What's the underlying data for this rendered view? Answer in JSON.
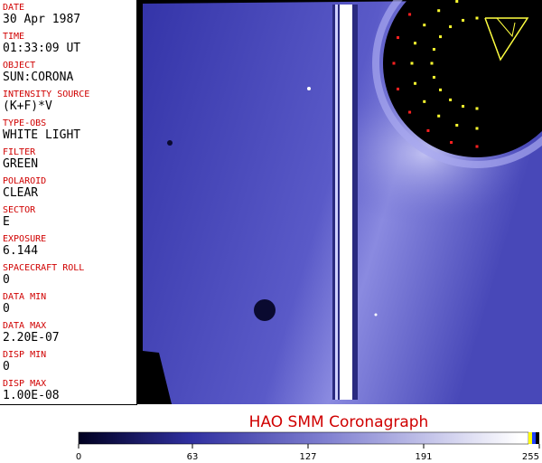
{
  "fields": [
    {
      "label": "DATE",
      "value": "30 Apr 1987"
    },
    {
      "label": "TIME",
      "value": "01:33:09 UT"
    },
    {
      "label": "OBJECT",
      "value": "SUN:CORONA"
    },
    {
      "label": "INTENSITY SOURCE",
      "value": "(K+F)*V"
    },
    {
      "label": "TYPE-OBS",
      "value": "WHITE LIGHT"
    },
    {
      "label": "FILTER",
      "value": "GREEN"
    },
    {
      "label": "POLAROID",
      "value": "CLEAR"
    },
    {
      "label": "SECTOR",
      "value": "E"
    },
    {
      "label": "EXPOSURE",
      "value": "6.144"
    },
    {
      "label": "SPACECRAFT ROLL",
      "value": "0"
    },
    {
      "label": "DATA MIN",
      "value": "0"
    },
    {
      "label": "DATA MAX",
      "value": "2.20E-07"
    },
    {
      "label": "DISP MIN",
      "value": "0"
    },
    {
      "label": "DISP MAX",
      "value": "1.00E-08"
    }
  ],
  "title": "HAO  SMM Coronagraph",
  "colorbar": {
    "range": [
      0,
      255
    ],
    "ticks": [
      0,
      63,
      127,
      191,
      255
    ]
  }
}
